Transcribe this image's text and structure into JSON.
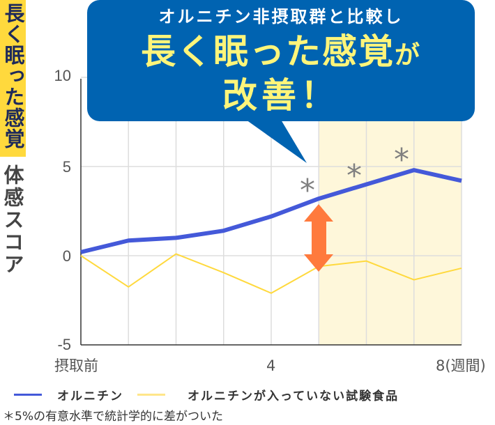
{
  "colors": {
    "bubble_bg": "#0063B1",
    "bubble_text_white": "#FFFFFF",
    "bubble_text_yellow": "#FFF57A",
    "ornithine_line": "#4459D9",
    "control_line": "#FFD93D",
    "highlight_band": "#FEF7DA",
    "arrow": "#FF7A3D",
    "asterisk": "#808080",
    "label_tag_bg": "#FFD93D",
    "label_tag_text": "#1E2A5A",
    "grid": "#DDDDDD",
    "axis": "#333333"
  },
  "callout": {
    "line1": "オルニチン非摂取群と比較し",
    "line2_main": "長く眠った感覚",
    "line2_suffix": "が",
    "line3": "改善！"
  },
  "y_axis": {
    "label": "体感スコア",
    "tag": "長く眠った感覚",
    "ticks": [
      "10",
      "5",
      "0",
      "-5"
    ]
  },
  "x_axis": {
    "ticks": [
      {
        "label": "摂取前",
        "pos": 0
      },
      {
        "label": "4",
        "pos": 4
      },
      {
        "label": "8(週間)",
        "pos": 8
      }
    ]
  },
  "significance_marker": "*",
  "legend": {
    "series1": "オルニチン",
    "series2": "オルニチンが入っていない試験食品"
  },
  "footnote": "＊5%の有意水準で統計学的に差がついた",
  "chart_data": {
    "type": "line",
    "title": "オルニチン非摂取群と比較し 長く眠った感覚が改善！",
    "xlabel": "",
    "ylabel": "体感スコア（長く眠った感覚）",
    "x": [
      0,
      1,
      2,
      3,
      4,
      5,
      6,
      7,
      8
    ],
    "x_tick_labels": {
      "0": "摂取前",
      "4": "4",
      "8": "8(週間)"
    },
    "ylim": [
      -5,
      10
    ],
    "yticks": [
      -5,
      0,
      5,
      10
    ],
    "grid": true,
    "highlight_x_range": [
      5,
      8
    ],
    "significant_points_series1": [
      5,
      6,
      7
    ],
    "series": [
      {
        "name": "オルニチン",
        "color": "#4459D9",
        "values": [
          0.2,
          0.85,
          1.0,
          1.4,
          2.2,
          3.2,
          4.0,
          4.8,
          4.2
        ]
      },
      {
        "name": "オルニチンが入っていない試験食品",
        "color": "#FFD93D",
        "values": [
          0.0,
          -1.75,
          0.1,
          -0.95,
          -2.1,
          -0.6,
          -0.3,
          -1.35,
          -0.7
        ]
      }
    ],
    "annotations": [
      "* 5%の有意水準で統計学的に差がついた",
      "difference arrow at week 5"
    ],
    "legend_position": "bottom"
  }
}
